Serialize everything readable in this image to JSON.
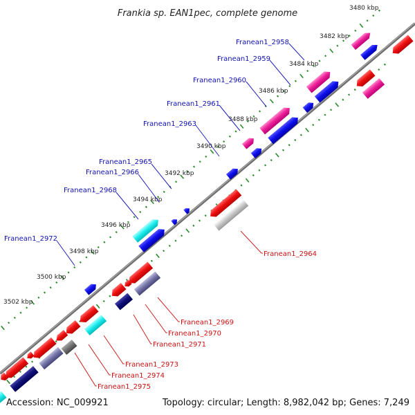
{
  "title": "Frankia sp. EAN1pec, complete genome",
  "footer": {
    "accession": "Accession: NC_009921",
    "summary": "Topology: circular; Length: 8,982,042 bp; Genes: 7,249"
  },
  "colors": {
    "backbone": "#808080",
    "ticks": "#2a8a2a",
    "upper_label": "#1010b0",
    "lower_label": "#cc1010"
  },
  "scale_labels": [
    "3480 kbp",
    "3482 kbp",
    "3484 kbp",
    "3486 kbp",
    "3488 kbp",
    "3490 kbp",
    "3492 kbp",
    "3494 kbp",
    "3496 kbp",
    "3498 kbp",
    "3500 kbp",
    "3502 kbp"
  ],
  "upper_gene_labels": [
    "Franean1_2958",
    "Franean1_2959",
    "Franean1_2960",
    "Franean1_2961",
    "Franean1_2963",
    "Franean1_2965",
    "Franean1_2966",
    "Franean1_2968",
    "Franean1_2972"
  ],
  "lower_gene_labels": [
    "Franean1_2964",
    "Franean1_2969",
    "Franean1_2970",
    "Franean1_2971",
    "Franean1_2973",
    "Franean1_2974",
    "Franean1_2975"
  ]
}
